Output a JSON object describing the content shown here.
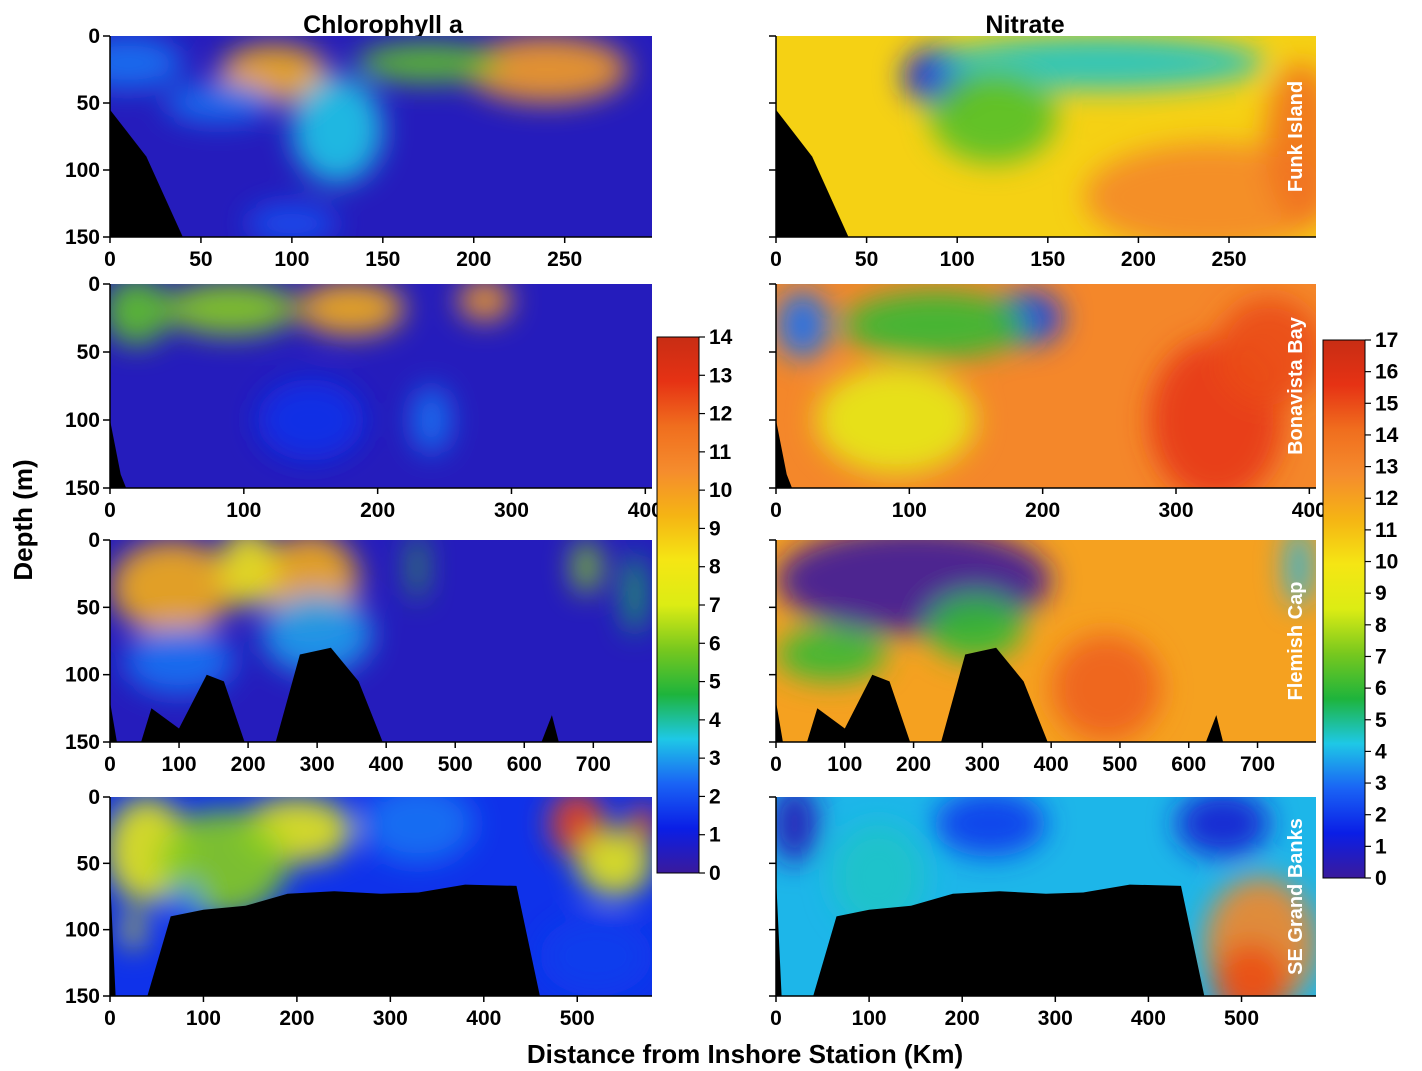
{
  "figure": {
    "xlabel": "Distance from Inshore Station (Km)",
    "ylabel": "Depth (m)",
    "column_titles": [
      "Chlorophyll a",
      "Nitrate"
    ]
  },
  "chart_data": [
    {
      "type": "heatmap",
      "title": "Chlorophyll a",
      "region": "",
      "row": 0,
      "col": 0,
      "xlim": [
        0,
        298
      ],
      "xticks": [
        0,
        50,
        100,
        150,
        200,
        250
      ],
      "ylim": [
        0,
        150
      ],
      "yticks": [
        0,
        50,
        100,
        150
      ],
      "yticks_labeled": true,
      "colorbar": "chl",
      "bathymetry": [
        [
          0,
          55
        ],
        [
          20,
          90
        ],
        [
          40,
          150
        ],
        [
          0,
          150
        ]
      ],
      "blobs": [
        [
          90,
          28,
          30,
          22,
          9.5
        ],
        [
          240,
          25,
          45,
          25,
          10
        ],
        [
          175,
          20,
          40,
          15,
          5.5
        ],
        [
          125,
          70,
          25,
          40,
          3.5
        ],
        [
          60,
          50,
          30,
          15,
          2.5
        ],
        [
          100,
          140,
          25,
          15,
          2
        ],
        [
          10,
          20,
          30,
          20,
          2.5
        ]
      ],
      "blobs_comment": "blobs are [x, depth, x_radius, depth_radius, value] in data units, background value 0.5"
    },
    {
      "type": "heatmap",
      "title": "Nitrate",
      "region": "Funk Island",
      "row": 0,
      "col": 1,
      "xlim": [
        0,
        298
      ],
      "xticks": [
        0,
        50,
        100,
        150,
        200,
        250
      ],
      "ylim": [
        0,
        150
      ],
      "yticks": [
        0,
        50,
        100,
        150
      ],
      "yticks_labeled": false,
      "colorbar": "nit",
      "bathymetry": [
        [
          0,
          55
        ],
        [
          20,
          90
        ],
        [
          40,
          150
        ],
        [
          0,
          150
        ]
      ],
      "background": 10.5,
      "blobs": [
        [
          90,
          30,
          20,
          22,
          -9
        ],
        [
          180,
          20,
          90,
          20,
          -6
        ],
        [
          120,
          60,
          35,
          35,
          -4
        ],
        [
          240,
          120,
          70,
          40,
          2.5
        ],
        [
          290,
          80,
          20,
          60,
          3.5
        ]
      ]
    },
    {
      "type": "heatmap",
      "title": "",
      "region": "",
      "row": 1,
      "col": 0,
      "xlim": [
        0,
        405
      ],
      "xticks": [
        0,
        100,
        200,
        300,
        400
      ],
      "ylim": [
        0,
        150
      ],
      "yticks": [
        0,
        50,
        100,
        150
      ],
      "yticks_labeled": true,
      "colorbar": "chl",
      "bathymetry": [
        [
          0,
          100
        ],
        [
          8,
          140
        ],
        [
          12,
          150
        ],
        [
          0,
          150
        ]
      ],
      "blobs": [
        [
          180,
          18,
          40,
          20,
          9.5
        ],
        [
          280,
          12,
          20,
          15,
          10
        ],
        [
          90,
          18,
          50,
          20,
          6
        ],
        [
          20,
          20,
          25,
          25,
          5.5
        ],
        [
          240,
          100,
          15,
          25,
          2.5
        ],
        [
          150,
          100,
          40,
          30,
          1.5
        ]
      ]
    },
    {
      "type": "heatmap",
      "title": "",
      "region": "Bonavista Bay",
      "row": 1,
      "col": 1,
      "xlim": [
        0,
        405
      ],
      "xticks": [
        0,
        100,
        200,
        300,
        400
      ],
      "ylim": [
        0,
        150
      ],
      "yticks": [
        0,
        50,
        100,
        150
      ],
      "yticks_labeled": false,
      "colorbar": "nit",
      "bathymetry": [
        [
          0,
          100
        ],
        [
          8,
          140
        ],
        [
          12,
          150
        ],
        [
          0,
          150
        ]
      ],
      "background": 13,
      "blobs": [
        [
          190,
          25,
          25,
          20,
          -11
        ],
        [
          20,
          30,
          20,
          25,
          -10
        ],
        [
          120,
          30,
          70,
          25,
          -7
        ],
        [
          90,
          100,
          60,
          40,
          -4
        ],
        [
          330,
          100,
          50,
          60,
          2.5
        ],
        [
          370,
          50,
          40,
          40,
          2
        ]
      ]
    },
    {
      "type": "heatmap",
      "title": "",
      "region": "",
      "row": 2,
      "col": 0,
      "xlim": [
        0,
        785
      ],
      "xticks": [
        0,
        100,
        200,
        300,
        400,
        500,
        600,
        700
      ],
      "ylim": [
        0,
        150
      ],
      "yticks": [
        0,
        50,
        100,
        150
      ],
      "yticks_labeled": true,
      "colorbar": "chl",
      "bathymetry": [
        [
          0,
          120
        ],
        [
          10,
          150
        ],
        [
          45,
          150
        ],
        [
          60,
          125
        ],
        [
          100,
          140
        ],
        [
          140,
          100
        ],
        [
          165,
          105
        ],
        [
          195,
          150
        ],
        [
          240,
          150
        ],
        [
          275,
          85
        ],
        [
          320,
          80
        ],
        [
          360,
          105
        ],
        [
          395,
          150
        ],
        [
          625,
          150
        ],
        [
          640,
          130
        ],
        [
          650,
          150
        ],
        [
          0,
          150
        ]
      ],
      "blobs": [
        [
          90,
          35,
          90,
          35,
          9.5
        ],
        [
          290,
          30,
          70,
          35,
          9.5
        ],
        [
          200,
          20,
          40,
          30,
          8
        ],
        [
          445,
          20,
          10,
          25,
          5
        ],
        [
          690,
          20,
          20,
          20,
          6
        ],
        [
          760,
          40,
          15,
          30,
          4.5
        ],
        [
          100,
          90,
          80,
          25,
          2.5
        ],
        [
          300,
          70,
          80,
          30,
          3
        ]
      ]
    },
    {
      "type": "heatmap",
      "title": "",
      "region": "Flemish Cap",
      "row": 2,
      "col": 1,
      "xlim": [
        0,
        785
      ],
      "xticks": [
        0,
        100,
        200,
        300,
        400,
        500,
        600,
        700
      ],
      "ylim": [
        0,
        150
      ],
      "yticks": [
        0,
        50,
        100,
        150
      ],
      "yticks_labeled": false,
      "colorbar": "nit",
      "bathymetry": [
        [
          0,
          120
        ],
        [
          10,
          150
        ],
        [
          45,
          150
        ],
        [
          60,
          125
        ],
        [
          100,
          140
        ],
        [
          140,
          100
        ],
        [
          165,
          105
        ],
        [
          195,
          150
        ],
        [
          240,
          150
        ],
        [
          275,
          85
        ],
        [
          320,
          80
        ],
        [
          360,
          105
        ],
        [
          395,
          150
        ],
        [
          625,
          150
        ],
        [
          640,
          130
        ],
        [
          650,
          150
        ],
        [
          0,
          150
        ]
      ],
      "background": 12,
      "blobs": [
        [
          200,
          30,
          200,
          40,
          -12
        ],
        [
          80,
          85,
          80,
          20,
          -6
        ],
        [
          290,
          65,
          70,
          25,
          -6
        ],
        [
          760,
          20,
          20,
          30,
          -8
        ],
        [
          480,
          110,
          80,
          40,
          2.5
        ]
      ]
    },
    {
      "type": "heatmap",
      "title": "",
      "region": "",
      "row": 3,
      "col": 0,
      "xlim": [
        0,
        580
      ],
      "xticks": [
        0,
        100,
        200,
        300,
        400,
        500
      ],
      "ylim": [
        0,
        150
      ],
      "yticks": [
        0,
        50,
        100,
        150
      ],
      "yticks_labeled": true,
      "colorbar": "chl",
      "bathymetry": [
        [
          0,
          60
        ],
        [
          6,
          150
        ],
        [
          40,
          150
        ],
        [
          65,
          90
        ],
        [
          100,
          85
        ],
        [
          145,
          82
        ],
        [
          190,
          73
        ],
        [
          240,
          71
        ],
        [
          290,
          73
        ],
        [
          330,
          72
        ],
        [
          380,
          66
        ],
        [
          435,
          67
        ],
        [
          460,
          150
        ],
        [
          0,
          150
        ]
      ],
      "background": 1.5,
      "blobs": [
        [
          40,
          40,
          45,
          40,
          6
        ],
        [
          200,
          25,
          60,
          25,
          6
        ],
        [
          120,
          50,
          70,
          40,
          4.5
        ],
        [
          25,
          100,
          10,
          15,
          6
        ],
        [
          80,
          80,
          15,
          15,
          1
        ],
        [
          500,
          20,
          30,
          25,
          11
        ],
        [
          570,
          20,
          15,
          15,
          11
        ],
        [
          540,
          50,
          40,
          25,
          6
        ],
        [
          330,
          20,
          60,
          30,
          1
        ],
        [
          520,
          120,
          60,
          30,
          0.2
        ]
      ]
    },
    {
      "type": "heatmap",
      "title": "",
      "region": "SE Grand Banks",
      "row": 3,
      "col": 1,
      "xlim": [
        0,
        580
      ],
      "xticks": [
        0,
        100,
        200,
        300,
        400,
        500
      ],
      "ylim": [
        0,
        150
      ],
      "yticks": [
        0,
        50,
        100,
        150
      ],
      "yticks_labeled": false,
      "colorbar": "nit",
      "bathymetry": [
        [
          0,
          60
        ],
        [
          6,
          150
        ],
        [
          40,
          150
        ],
        [
          65,
          90
        ],
        [
          100,
          85
        ],
        [
          145,
          82
        ],
        [
          190,
          73
        ],
        [
          240,
          71
        ],
        [
          290,
          73
        ],
        [
          330,
          72
        ],
        [
          380,
          66
        ],
        [
          435,
          67
        ],
        [
          460,
          150
        ],
        [
          0,
          150
        ]
      ],
      "background": 4,
      "blobs": [
        [
          20,
          20,
          25,
          30,
          -3.5
        ],
        [
          230,
          20,
          60,
          25,
          -2
        ],
        [
          480,
          20,
          50,
          25,
          -3
        ],
        [
          110,
          60,
          50,
          40,
          0.5
        ],
        [
          520,
          110,
          60,
          50,
          9
        ],
        [
          510,
          140,
          40,
          30,
          11
        ]
      ]
    }
  ],
  "colorbars": {
    "chl": {
      "ticks": [
        0,
        1,
        2,
        3,
        4,
        5,
        6,
        7,
        8,
        9,
        10,
        11,
        12,
        13,
        14
      ],
      "min": 0,
      "max": 14
    },
    "nit": {
      "ticks": [
        0,
        1,
        2,
        3,
        4,
        5,
        6,
        7,
        8,
        9,
        10,
        11,
        12,
        13,
        14,
        15,
        16,
        17
      ],
      "min": 0,
      "max": 17
    }
  },
  "colors": {
    "ramp": [
      "#3a1a9c",
      "#0a1ee6",
      "#1a64f5",
      "#1ec8e6",
      "#1eb43c",
      "#78c81e",
      "#dcec14",
      "#f5e614",
      "#f5b414",
      "#f58c2d",
      "#f06e1e",
      "#e63214",
      "#c82d14"
    ],
    "bathymetry": "#000000",
    "region_label": "#ffffff"
  }
}
